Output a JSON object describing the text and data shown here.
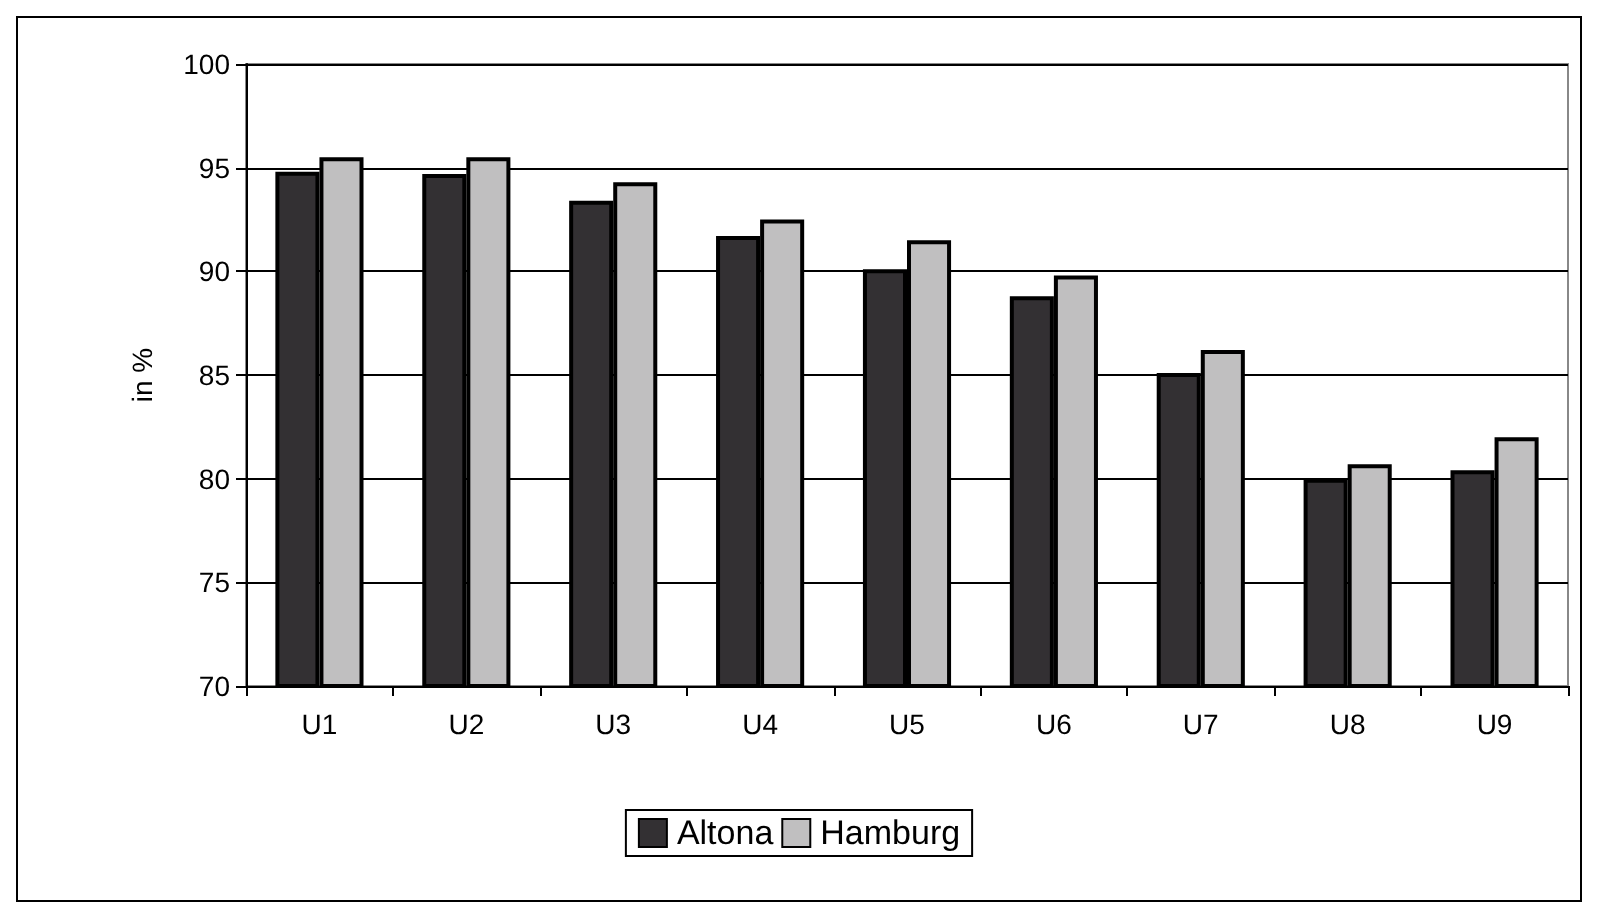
{
  "chart_data": {
    "type": "bar",
    "ylabel": "in %",
    "categories": [
      "U1",
      "U2",
      "U3",
      "U4",
      "U5",
      "U6",
      "U7",
      "U8",
      "U9"
    ],
    "series": [
      {
        "name": "Altona",
        "color": "#333033",
        "values": [
          94.8,
          94.7,
          93.4,
          91.7,
          90.1,
          88.8,
          85.1,
          80.0,
          80.4
        ]
      },
      {
        "name": "Hamburg",
        "color": "#c0bfc0",
        "values": [
          95.5,
          95.5,
          94.3,
          92.5,
          91.5,
          89.8,
          86.2,
          80.7,
          82.0
        ]
      }
    ],
    "ylim": [
      70,
      100
    ],
    "yticks": [
      70,
      75,
      80,
      85,
      90,
      95,
      100
    ],
    "grid": "y",
    "legend": "bottom"
  }
}
